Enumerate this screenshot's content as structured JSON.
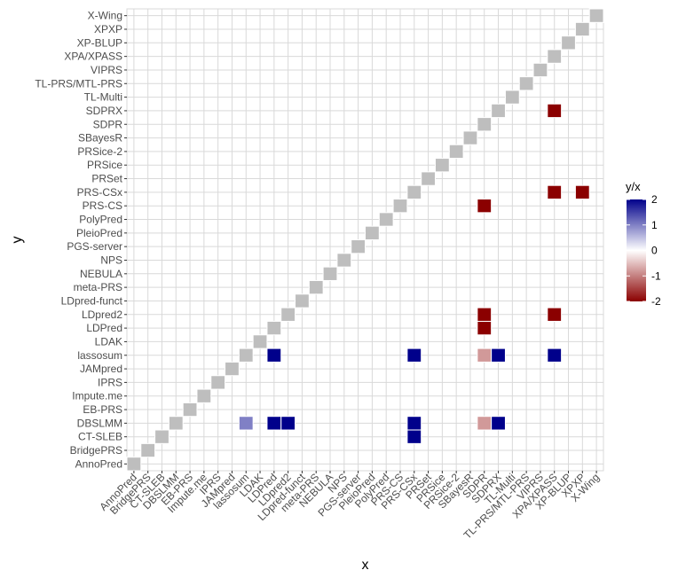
{
  "chart_data": {
    "type": "heatmap",
    "title": "",
    "xlabel": "x",
    "ylabel": "y",
    "legend_title": "y/x",
    "legend_position": "right",
    "grid": true,
    "categories": [
      "AnnoPred",
      "BridgePRS",
      "CT-SLEB",
      "DBSLMM",
      "EB-PRS",
      "Impute.me",
      "IPRS",
      "JAMpred",
      "lassosum",
      "LDAK",
      "LDPred",
      "LDpred2",
      "LDpred-funct",
      "meta-PRS",
      "NEBULA",
      "NPS",
      "PGS-server",
      "PleioPred",
      "PolyPred",
      "PRS-CS",
      "PRS-CSx",
      "PRSet",
      "PRSice",
      "PRSice-2",
      "SBayesR",
      "SDPR",
      "SDPRX",
      "TL-Multi",
      "TL-PRS/MTL-PRS",
      "VIPRS",
      "XPA/XPASS",
      "XP-BLUP",
      "XPXP",
      "X-Wing"
    ],
    "color_scale": {
      "min": -2,
      "max": 2,
      "ticks": [
        -2,
        -1,
        0,
        1,
        2
      ],
      "low_color": "#8b0000",
      "mid_color": "#ffffff",
      "high_color": "#00008b"
    },
    "diagonal_color": "#bebebe",
    "cells": [
      {
        "x": "LDPred",
        "y": "lassosum",
        "value": 2
      },
      {
        "x": "PRS-CSx",
        "y": "lassosum",
        "value": 2
      },
      {
        "x": "SDPR",
        "y": "lassosum",
        "value": -0.8
      },
      {
        "x": "SDPRX",
        "y": "lassosum",
        "value": 2
      },
      {
        "x": "XPA/XPASS",
        "y": "lassosum",
        "value": 2
      },
      {
        "x": "lassosum",
        "y": "DBSLMM",
        "value": 1
      },
      {
        "x": "LDPred",
        "y": "DBSLMM",
        "value": 2
      },
      {
        "x": "LDpred2",
        "y": "DBSLMM",
        "value": 2
      },
      {
        "x": "PRS-CSx",
        "y": "DBSLMM",
        "value": 2
      },
      {
        "x": "SDPR",
        "y": "DBSLMM",
        "value": -0.8
      },
      {
        "x": "SDPRX",
        "y": "DBSLMM",
        "value": 2
      },
      {
        "x": "PRS-CSx",
        "y": "CT-SLEB",
        "value": 2
      },
      {
        "x": "SDPR",
        "y": "LDPred",
        "value": -2
      },
      {
        "x": "SDPR",
        "y": "LDpred2",
        "value": -2
      },
      {
        "x": "XPA/XPASS",
        "y": "LDpred2",
        "value": -2
      },
      {
        "x": "SDPR",
        "y": "PRS-CS",
        "value": -2
      },
      {
        "x": "XPA/XPASS",
        "y": "PRS-CSx",
        "value": -2
      },
      {
        "x": "XPXP",
        "y": "PRS-CSx",
        "value": -2
      },
      {
        "x": "XPA/XPASS",
        "y": "SDPRX",
        "value": -2
      }
    ]
  }
}
